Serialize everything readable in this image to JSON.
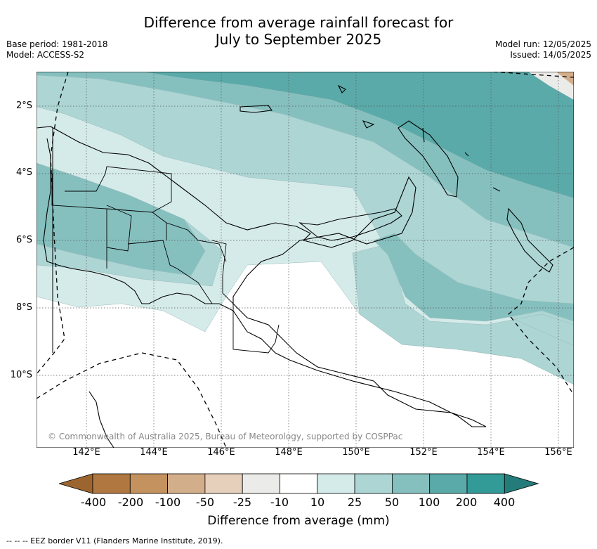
{
  "title_line1": "Difference from average rainfall forecast for",
  "title_line2": "July to September 2025",
  "base_period": "Base period: 1981-2018",
  "model": "Model: ACCESS-S2",
  "model_run": "Model run: 12/05/2025",
  "issued": "Issued: 14/05/2025",
  "lat_labels": [
    "2°S",
    "4°S",
    "6°S",
    "8°S",
    "10°S"
  ],
  "lon_labels": [
    "142°E",
    "144°E",
    "146°E",
    "148°E",
    "150°E",
    "152°E",
    "154°E",
    "156°E"
  ],
  "credit": "© Commonwealth of Australia 2025, Bureau of Meteorology, supported by COSPPac",
  "colorbar": {
    "title": "Difference from average (mm)",
    "labels": [
      "-400",
      "-200",
      "-100",
      "-50",
      "-25",
      "-10",
      "10",
      "25",
      "50",
      "100",
      "200",
      "400"
    ],
    "colors": [
      "#9c6530",
      "#b07840",
      "#c3925f",
      "#d3ae8a",
      "#e6cfbb",
      "#ebebe9",
      "#ffffff",
      "#d5ebe9",
      "#acd5d4",
      "#85c0bf",
      "#5aaaa9",
      "#329a97",
      "#237c79"
    ]
  },
  "eez_note": "-- -- -- EEZ border V11 (Flanders Marine Institute, 2019)."
}
